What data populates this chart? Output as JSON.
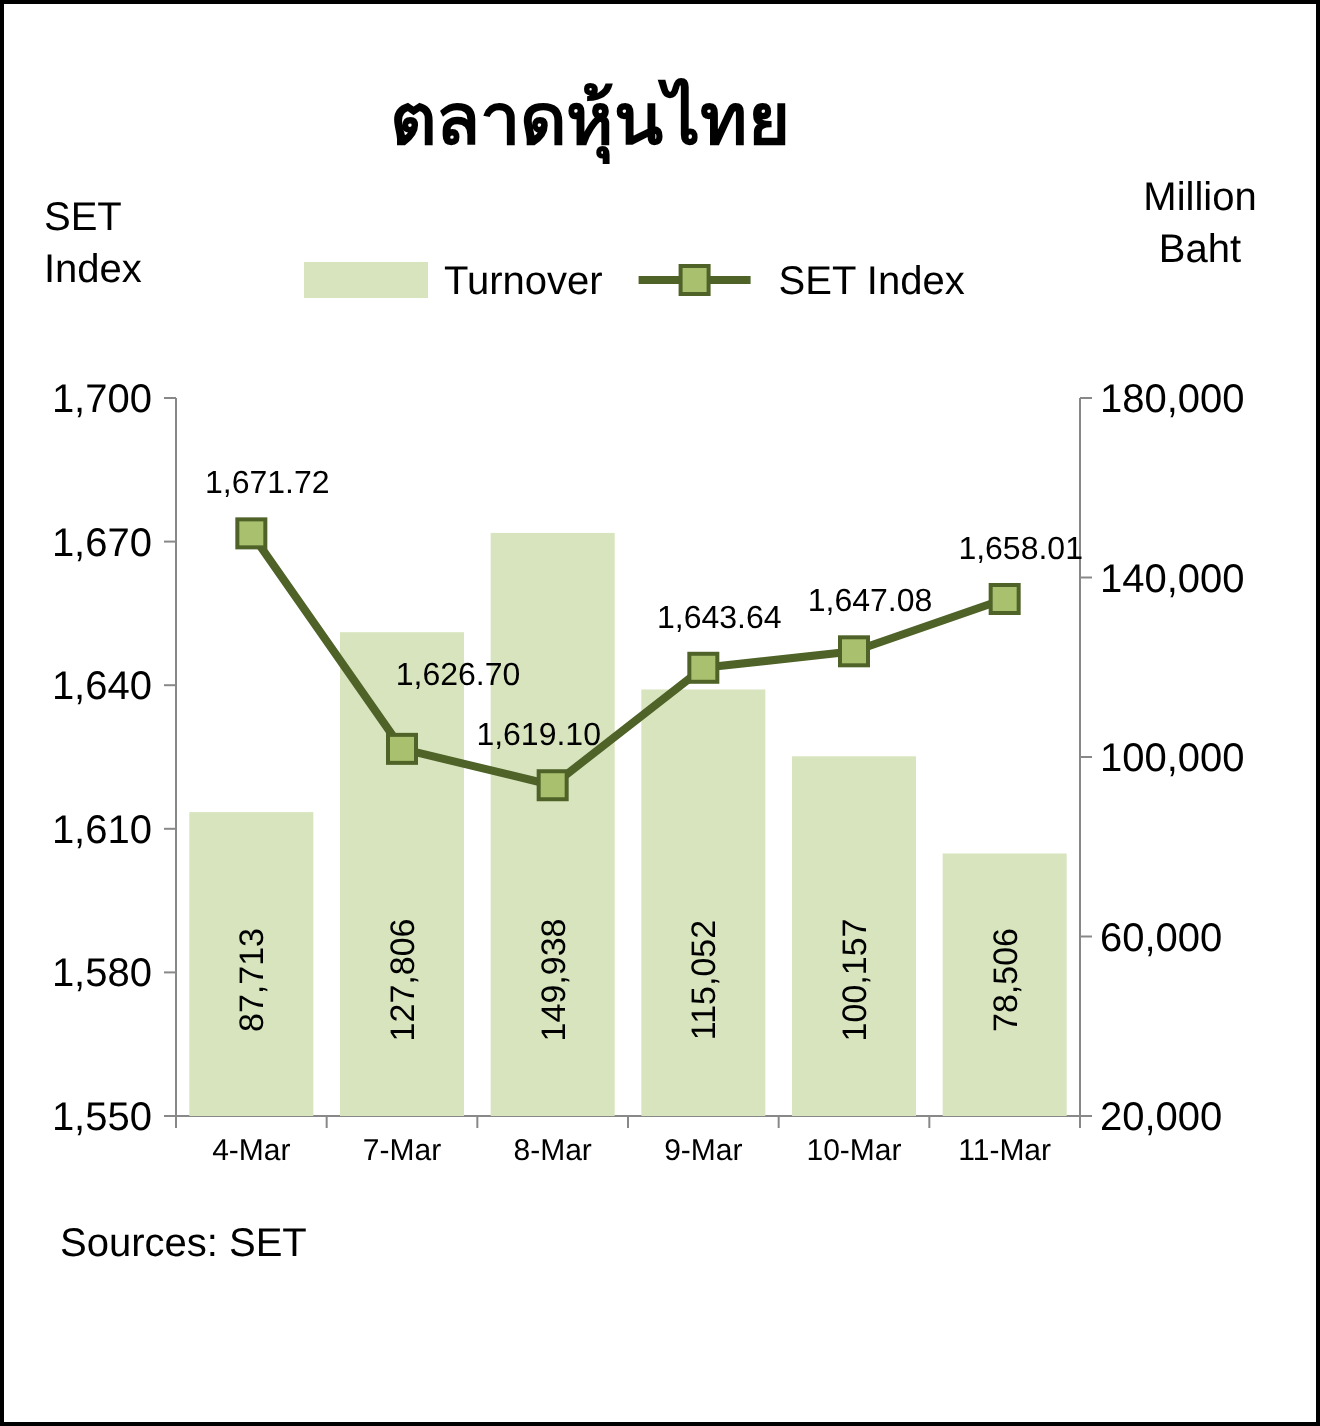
{
  "chart_data": {
    "type": "bar",
    "title": "ตลาดหุ้นไทย",
    "ylabel": "SET Index",
    "y2label": "Million Baht",
    "categories": [
      "4-Mar",
      "7-Mar",
      "8-Mar",
      "9-Mar",
      "10-Mar",
      "11-Mar"
    ],
    "series": [
      {
        "name": "Turnover",
        "axis": "y2",
        "color": "#d7e4bd",
        "values": [
          87713,
          127806,
          149938,
          115052,
          100157,
          78506
        ],
        "value_labels": [
          "87,713",
          "127,806",
          "149,938",
          "115,052",
          "100,157",
          "78,506"
        ]
      },
      {
        "name": "SET Index",
        "type": "line",
        "color": "#4f6228",
        "values": [
          1671.72,
          1626.7,
          1619.1,
          1643.64,
          1647.08,
          1658.01
        ],
        "value_labels": [
          "1,671.72",
          "1,626.70",
          "1,619.10",
          "1,643.64",
          "1,647.08",
          "1,658.01"
        ]
      }
    ],
    "ylim": [
      1550,
      1700
    ],
    "yticks": [
      {
        "value": 1550,
        "label": "1,550"
      },
      {
        "value": 1580,
        "label": "1,580"
      },
      {
        "value": 1610,
        "label": "1,610"
      },
      {
        "value": 1640,
        "label": "1,640"
      },
      {
        "value": 1670,
        "label": "1,670"
      },
      {
        "value": 1700,
        "label": "1,700"
      }
    ],
    "y2lim": [
      20000,
      180000
    ],
    "y2ticks": [
      {
        "value": 20000,
        "label": "20,000"
      },
      {
        "value": 60000,
        "label": "60,000"
      },
      {
        "value": 100000,
        "label": "100,000"
      },
      {
        "value": 140000,
        "label": "140,000"
      },
      {
        "value": 180000,
        "label": "180,000"
      }
    ],
    "marker": "square",
    "legend": "top",
    "annotations": [
      "Sources: SET"
    ]
  }
}
